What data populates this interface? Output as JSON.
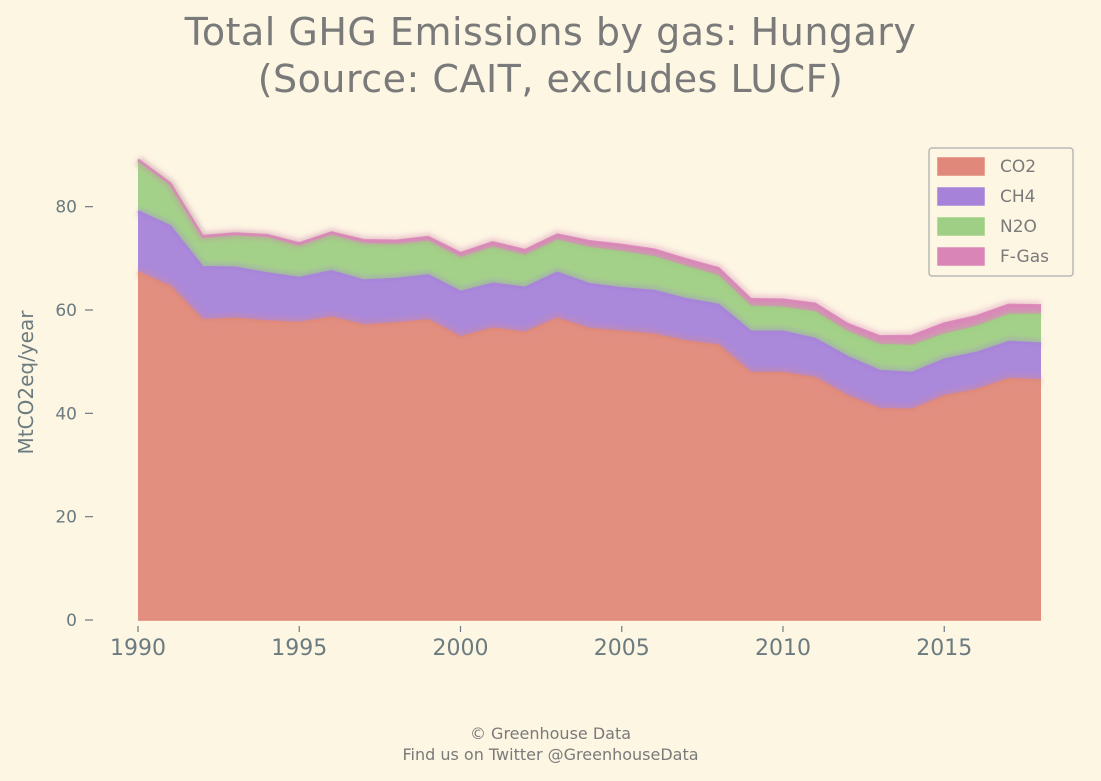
{
  "title_line1": "Total GHG Emissions by gas: Hungary",
  "title_line2": "(Source: CAIT, excludes LUCF)",
  "footer_line1": "© Greenhouse Data",
  "footer_line2": "Find us on Twitter @GreenhouseData",
  "colors": {
    "background": "#fdf6e3",
    "text": "#7a7a7a",
    "axis_text": "#6b7b80",
    "CO2": "#e0897a",
    "CH4": "#a683d9",
    "N2O": "#9fcf84",
    "F-Gas": "#d985b8"
  },
  "chart_data": {
    "type": "area",
    "stacked": true,
    "title": "Total GHG Emissions by gas: Hungary (Source: CAIT, excludes LUCF)",
    "xlabel": "",
    "ylabel": "MtCO2eq/year",
    "xlim": [
      1990,
      2018
    ],
    "ylim": [
      0,
      90
    ],
    "x_ticks": [
      1990,
      1995,
      2000,
      2005,
      2010,
      2015
    ],
    "y_ticks": [
      0,
      20,
      40,
      60,
      80
    ],
    "grid": false,
    "legend_position": "top-right",
    "x": [
      1990,
      1991,
      1992,
      1993,
      1994,
      1995,
      1996,
      1997,
      1998,
      1999,
      2000,
      2001,
      2002,
      2003,
      2004,
      2005,
      2006,
      2007,
      2008,
      2009,
      2010,
      2011,
      2012,
      2013,
      2014,
      2015,
      2016,
      2017,
      2018
    ],
    "series": [
      {
        "name": "CO2",
        "values": [
          67.3,
          64.5,
          58.0,
          58.3,
          57.8,
          57.5,
          58.5,
          57.0,
          57.4,
          58.0,
          54.7,
          56.4,
          55.6,
          58.3,
          56.3,
          55.8,
          55.2,
          53.9,
          53.1,
          47.8,
          47.8,
          46.8,
          43.3,
          40.8,
          40.7,
          43.3,
          44.5,
          46.6,
          46.4
        ]
      },
      {
        "name": "CH4",
        "values": [
          11.8,
          11.7,
          10.3,
          9.9,
          9.3,
          8.7,
          9.0,
          8.7,
          8.6,
          8.7,
          8.8,
          8.7,
          8.7,
          8.9,
          8.7,
          8.4,
          8.5,
          8.2,
          7.9,
          8.0,
          8.0,
          7.6,
          7.6,
          7.4,
          7.1,
          7.1,
          7.2,
          7.2,
          7.1
        ]
      },
      {
        "name": "N2O",
        "values": [
          9.6,
          7.8,
          5.4,
          6.0,
          6.8,
          6.0,
          6.8,
          7.0,
          6.5,
          6.5,
          6.5,
          6.9,
          6.2,
          6.2,
          7.0,
          7.0,
          6.5,
          6.2,
          5.5,
          4.8,
          4.6,
          5.1,
          4.8,
          5.0,
          5.2,
          4.8,
          5.0,
          5.2,
          5.6
        ]
      },
      {
        "name": "F-Gas",
        "values": [
          0.4,
          0.5,
          0.6,
          0.6,
          0.6,
          0.7,
          0.7,
          0.8,
          0.9,
          0.9,
          1.0,
          1.1,
          1.1,
          1.2,
          1.3,
          1.4,
          1.5,
          1.5,
          1.6,
          1.5,
          1.6,
          1.7,
          1.6,
          1.7,
          2.0,
          2.2,
          2.1,
          2.0,
          1.8
        ]
      }
    ]
  }
}
